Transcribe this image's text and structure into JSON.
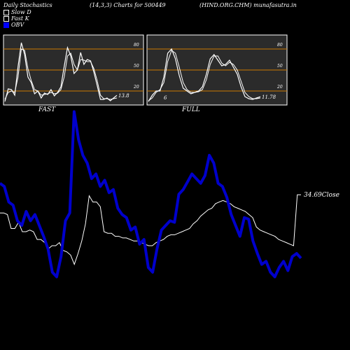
{
  "header": {
    "left": "Daily Stochastics",
    "params": "(14,3,3) Charts for 500449",
    "symbol": "(HIND.ORG.CHM) munafasutra.in"
  },
  "legend": [
    {
      "label": "Slow  D",
      "color": "#ffffff"
    },
    {
      "label": "Fast K",
      "color": "#ffffff"
    },
    {
      "label": "OBV",
      "color": "#0000ff"
    }
  ],
  "colors": {
    "background": "#000000",
    "panel": "#2b2b2b",
    "ref_lines": "#cc7a00",
    "obv": "#0000cc",
    "price": "#ffffff"
  },
  "chart_data": [
    {
      "type": "line",
      "title": "FAST",
      "ylim": [
        0,
        100
      ],
      "yticks": [
        "80",
        "50",
        "20"
      ],
      "reference_lines": [
        80,
        50,
        20
      ],
      "last_value_label": "13.8",
      "side_label": "",
      "series": [
        {
          "name": "Fast K",
          "values": [
            5,
            23,
            22,
            14,
            55,
            89,
            72,
            40,
            32,
            16,
            20,
            10,
            17,
            15,
            22,
            13,
            18,
            26,
            55,
            82,
            70,
            45,
            50,
            75,
            58,
            65,
            63,
            47,
            28,
            8,
            8,
            10,
            6,
            10,
            13.8
          ]
        },
        {
          "name": "Slow  D",
          "values": [
            8,
            18,
            20,
            18,
            40,
            80,
            78,
            52,
            35,
            22,
            20,
            14,
            15,
            16,
            18,
            16,
            17,
            22,
            40,
            70,
            74,
            58,
            50,
            65,
            64,
            62,
            62,
            52,
            35,
            14,
            9,
            9,
            8,
            9,
            10
          ]
        }
      ]
    },
    {
      "type": "line",
      "title": "FULL",
      "ylim": [
        0,
        100
      ],
      "yticks": [
        "80",
        "50",
        "20"
      ],
      "reference_lines": [
        80,
        50,
        20
      ],
      "last_value_label": "11.78",
      "side_label": "6",
      "series": [
        {
          "name": "Fast K",
          "values": [
            5,
            14,
            20,
            20,
            40,
            74,
            80,
            66,
            42,
            24,
            20,
            16,
            18,
            20,
            26,
            44,
            66,
            72,
            64,
            56,
            58,
            64,
            54,
            44,
            26,
            12,
            9,
            8,
            10,
            11.78
          ]
        },
        {
          "name": "Slow  D",
          "values": [
            6,
            10,
            18,
            22,
            32,
            62,
            78,
            74,
            54,
            32,
            22,
            18,
            18,
            19,
            22,
            36,
            58,
            70,
            70,
            60,
            56,
            61,
            58,
            50,
            34,
            18,
            12,
            9,
            9,
            10
          ]
        }
      ]
    },
    {
      "type": "line",
      "title": "",
      "last_value_label": "34.69",
      "last_value_suffix": "Close",
      "series": [
        {
          "name": "Close",
          "values": [
            23,
            23,
            22,
            13,
            13,
            17,
            11,
            11,
            12,
            11,
            6,
            6,
            4,
            0,
            2,
            2,
            4,
            -1,
            -2,
            -4,
            -10,
            -3,
            5,
            16,
            34,
            30,
            30,
            27,
            11,
            10,
            10,
            8,
            8,
            7,
            7,
            6,
            5,
            5,
            4,
            3,
            2,
            2,
            4,
            5,
            6,
            8,
            9,
            9,
            10,
            11,
            12,
            13,
            16,
            18,
            21,
            23,
            25,
            26,
            29,
            30,
            31,
            30,
            29,
            27,
            26,
            25,
            24,
            22,
            20,
            14,
            12,
            11,
            10,
            9,
            8,
            6,
            5,
            4,
            3,
            2,
            34.69,
            34.69
          ]
        },
        {
          "name": "OBV",
          "values": [
            42,
            40,
            30,
            28,
            18,
            15,
            24,
            18,
            22,
            15,
            8,
            0,
            -15,
            -18,
            -5,
            18,
            23,
            88,
            70,
            60,
            55,
            45,
            48,
            40,
            44,
            36,
            38,
            26,
            22,
            20,
            12,
            14,
            3,
            6,
            -12,
            -15,
            0,
            12,
            15,
            18,
            17,
            35,
            38,
            43,
            48,
            45,
            42,
            47,
            60,
            55,
            42,
            40,
            33,
            22,
            15,
            8,
            20,
            19,
            5,
            -3,
            -10,
            -8,
            -15,
            -18,
            -12,
            -8,
            -14,
            -5,
            -3,
            -6
          ]
        }
      ]
    }
  ],
  "panels": {
    "fast_label": "FAST",
    "full_label": "FULL"
  }
}
